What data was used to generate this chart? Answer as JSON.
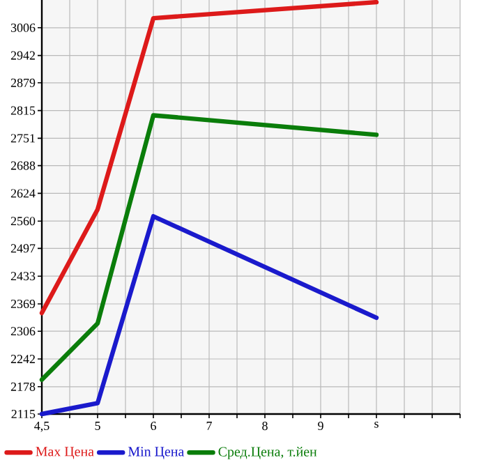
{
  "chart_data": {
    "type": "line",
    "categories": [
      "4,5",
      "5",
      "6",
      "7",
      "8",
      "9",
      "s"
    ],
    "series": [
      {
        "name": "Max Цена",
        "color": "#dd1a1a",
        "values": [
          2348,
          2587,
          3028,
          null,
          null,
          null,
          3065
        ]
      },
      {
        "name": "Min Цена",
        "color": "#1a1acc",
        "values": [
          2115,
          2140,
          2571,
          null,
          null,
          null,
          2337
        ]
      },
      {
        "name": "Сред.Цена, т.йен",
        "color": "#0a7d0a",
        "values": [
          2194,
          2324,
          2804,
          null,
          null,
          null,
          2759
        ]
      }
    ],
    "ylim": [
      2115,
      3070
    ],
    "yticks": [
      2115,
      2178,
      2242,
      2306,
      2369,
      2433,
      2497,
      2560,
      2624,
      2688,
      2751,
      2815,
      2879,
      2942,
      3006
    ],
    "grid": true,
    "legend": "bottom",
    "marker": "none",
    "line_style": "solid"
  }
}
